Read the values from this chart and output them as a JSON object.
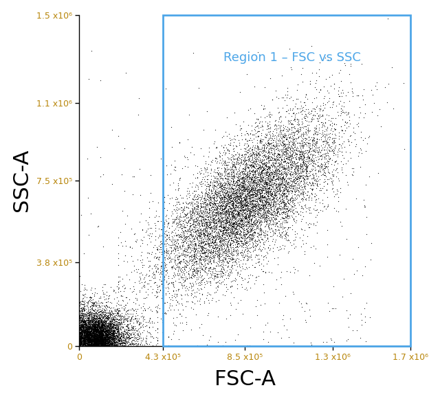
{
  "xlim": [
    0,
    1700000.0
  ],
  "ylim": [
    0,
    1500000.0
  ],
  "xlabel": "FSC-A",
  "ylabel": "SSC-A",
  "xlabel_fontsize": 22,
  "ylabel_fontsize": 22,
  "xticks": [
    0,
    430000.0,
    850000.0,
    1300000.0,
    1700000.0
  ],
  "yticks": [
    0,
    380000.0,
    750000.0,
    1100000.0,
    1500000.0
  ],
  "xtick_labels": [
    "0",
    "4.3 x10⁵",
    "8.5 x10⁵",
    "1.3 x10⁶",
    "1.7 x10⁶"
  ],
  "ytick_labels": [
    "0",
    "3.8 x10⁵",
    "7.5 x10⁵",
    "1.1 x10⁶",
    "1.5 x10⁶"
  ],
  "tick_label_color": "#b8860b",
  "region_label": "Region 1 – FSC vs SSC",
  "region_color": "#4da6e8",
  "region_x": 430000.0,
  "region_y": 0,
  "region_width_end": 1700000.0,
  "region_height_end": 1500000.0,
  "tick_fontsize": 9,
  "background_color": "#ffffff",
  "dot_color": "#000000",
  "dot_size": 0.8,
  "dot_alpha": 0.85,
  "n_debris": 4000,
  "n_main": 10000,
  "n_trans": 3000,
  "seed": 42
}
